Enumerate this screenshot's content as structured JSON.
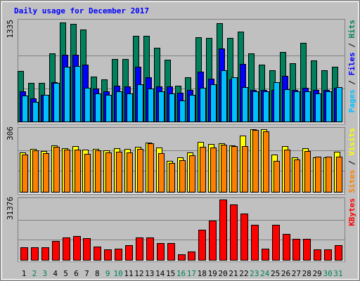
{
  "chart_data": [
    {
      "type": "bar",
      "title": "Daily usage for December 2017",
      "categories": [
        "1",
        "2",
        "3",
        "4",
        "5",
        "6",
        "7",
        "8",
        "9",
        "10",
        "11",
        "12",
        "13",
        "14",
        "15",
        "16",
        "17",
        "18",
        "19",
        "20",
        "21",
        "22",
        "23",
        "24",
        "25",
        "26",
        "27",
        "28",
        "29",
        "30",
        "31"
      ],
      "category_colors": [
        "#000000",
        "#00805c",
        "#00805c",
        "#000000",
        "#000000",
        "#000000",
        "#000000",
        "#000000",
        "#00805c",
        "#00805c",
        "#000000",
        "#000000",
        "#000000",
        "#000000",
        "#000000",
        "#00805c",
        "#00805c",
        "#000000",
        "#000000",
        "#000000",
        "#000000",
        "#000000",
        "#00805c",
        "#00805c",
        "#000000",
        "#000000",
        "#000000",
        "#000000",
        "#000000",
        "#00805c",
        "#00805c"
      ],
      "legend_separator": " / ",
      "ylim": [
        0,
        1335
      ],
      "yticks": [
        1335
      ],
      "series": [
        {
          "name": "Hits",
          "color": "#00805c",
          "values": [
            677,
            524,
            524,
            915,
            1335,
            1316,
            1240,
            610,
            572,
            839,
            839,
            1154,
            1154,
            992,
            830,
            486,
            601,
            1135,
            1125,
            1330,
            1125,
            1211,
            915,
            763,
            687,
            934,
            782,
            1058,
            820,
            687,
            734
          ]
        },
        {
          "name": "Files",
          "color": "#0000ff",
          "values": [
            410,
            315,
            362,
            534,
            896,
            896,
            763,
            448,
            410,
            486,
            477,
            734,
            601,
            477,
            477,
            391,
            429,
            668,
            582,
            982,
            572,
            772,
            429,
            429,
            429,
            620,
            429,
            458,
            429,
            429,
            458
          ]
        },
        {
          "name": "Pages",
          "color": "#00c0ff",
          "values": [
            353,
            267,
            362,
            524,
            734,
            744,
            458,
            381,
            362,
            410,
            381,
            505,
            448,
            410,
            381,
            286,
            362,
            458,
            505,
            687,
            601,
            467,
            410,
            410,
            534,
            439,
            410,
            410,
            381,
            410,
            467
          ]
        }
      ]
    },
    {
      "type": "bar",
      "legend_separator": " / ",
      "ylim": [
        0,
        306
      ],
      "yticks": [
        306
      ],
      "series": [
        {
          "name": "Visits",
          "color": "#ffff00",
          "values": [
            193,
            210,
            199,
            227,
            213,
            223,
            206,
            210,
            203,
            213,
            210,
            220,
            241,
            217,
            151,
            168,
            193,
            244,
            234,
            237,
            227,
            275,
            306,
            306,
            182,
            223,
            168,
            213,
            168,
            168,
            196
          ]
        },
        {
          "name": "Sites",
          "color": "#ff8000",
          "values": [
            182,
            203,
            189,
            220,
            206,
            206,
            186,
            203,
            193,
            196,
            193,
            210,
            237,
            189,
            141,
            155,
            179,
            220,
            217,
            230,
            223,
            223,
            303,
            296,
            151,
            206,
            158,
            199,
            172,
            172,
            172
          ]
        }
      ]
    },
    {
      "type": "bar",
      "ylim": [
        0,
        31376
      ],
      "yticks": [
        31376
      ],
      "series": [
        {
          "name": "KBytes",
          "color": "#ff0000",
          "values": [
            6567,
            6567,
            6567,
            9851,
            11675,
            12405,
            11310,
            6932,
            5473,
            5837,
            7662,
            11675,
            11675,
            8756,
            8756,
            2919,
            4378,
            15688,
            20431,
            31376,
            28822,
            24079,
            18242,
            5837,
            18242,
            13499,
            10945,
            10945,
            5473,
            5473,
            7662
          ]
        }
      ]
    }
  ]
}
